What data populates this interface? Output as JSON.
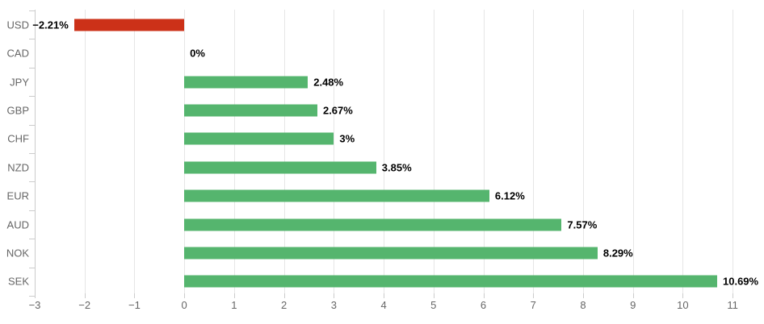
{
  "chart_data": {
    "type": "bar",
    "orientation": "horizontal",
    "title": "",
    "xlabel": "",
    "ylabel": "",
    "categories": [
      "USD",
      "CAD",
      "JPY",
      "GBP",
      "CHF",
      "NZD",
      "EUR",
      "AUD",
      "NOK",
      "SEK"
    ],
    "values": [
      -2.21,
      0,
      2.48,
      2.67,
      3,
      3.85,
      6.12,
      7.57,
      8.29,
      10.69
    ],
    "value_labels": [
      "−2.21%",
      "0%",
      "2.48%",
      "2.67%",
      "3%",
      "3.85%",
      "6.12%",
      "7.57%",
      "8.29%",
      "10.69%"
    ],
    "xlim": [
      -3,
      11.5
    ],
    "xticks": [
      -3,
      -2,
      -1,
      0,
      1,
      2,
      3,
      4,
      5,
      6,
      7,
      8,
      9,
      10,
      11
    ],
    "xtick_labels": [
      "−3",
      "−2",
      "−1",
      "0",
      "1",
      "2",
      "3",
      "4",
      "5",
      "6",
      "7",
      "8",
      "9",
      "10",
      "11"
    ],
    "grid": true,
    "legend": false,
    "colors": {
      "positive": "#55b56e",
      "negative": "#cc3118",
      "gridline": "#e6e6e6",
      "axis": "#cccccc",
      "tick_label": "#666666",
      "value_label": "#000000"
    }
  }
}
